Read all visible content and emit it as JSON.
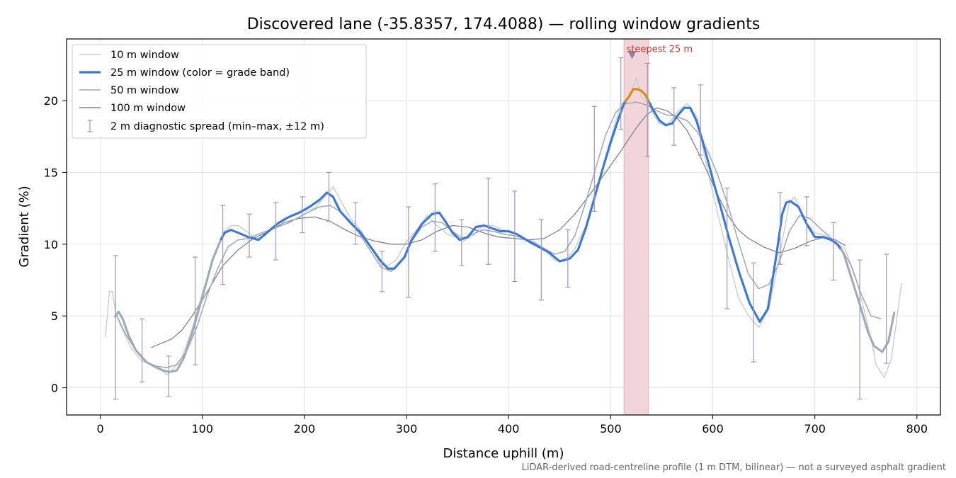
{
  "chart_data": {
    "type": "line",
    "title": "Discovered lane (-35.8357, 174.4088) — rolling window gradients",
    "xlabel": "Distance uphill (m)",
    "ylabel": "Gradient (%)",
    "xlim": [
      -33,
      823
    ],
    "ylim": [
      -1.9,
      24.3
    ],
    "x_ticks": [
      0,
      100,
      200,
      300,
      400,
      500,
      600,
      700,
      800
    ],
    "y_ticks": [
      0,
      5,
      10,
      15,
      20
    ],
    "grid": true,
    "legend_position": "top-left",
    "footnote": "LiDAR-derived road-centreline profile (1 m DTM, bilinear) — not a surveyed asphalt gradient",
    "annotation": {
      "text": "steepest 25 m",
      "x": 521,
      "y": 23.2
    },
    "highlight_band": {
      "x_start": 513,
      "x_end": 537
    },
    "colors": {
      "w10": "#c9ccd8",
      "w25_base": "#9caab8",
      "w25_band_blue": "#3a78d6",
      "w25_band_orange": "#d98a0c",
      "w50": "#9ea6b6",
      "w100": "#7c8496",
      "errorbar": "#9e97be",
      "band_fill": "#f2d5d8",
      "band_edge": "#e6b3b8",
      "marker": "#8a7fa8"
    },
    "series": [
      {
        "name": "10 m window",
        "x": [
          5,
          9,
          12,
          15,
          20,
          30,
          40,
          50,
          60,
          65,
          70,
          80,
          90,
          100,
          110,
          120,
          128,
          135,
          145,
          155,
          165,
          180,
          195,
          210,
          220,
          228,
          235,
          245,
          255,
          265,
          275,
          282,
          290,
          300,
          310,
          320,
          330,
          340,
          348,
          355,
          365,
          375,
          385,
          395,
          405,
          415,
          425,
          435,
          445,
          455,
          465,
          475,
          485,
          495,
          505,
          510,
          515,
          520,
          525,
          530,
          537,
          542,
          548,
          555,
          565,
          570,
          575,
          585,
          590,
          597,
          605,
          615,
          625,
          635,
          645,
          655,
          665,
          675,
          680,
          690,
          700,
          710,
          720,
          730,
          740,
          748,
          756,
          760,
          768,
          775,
          785
        ],
        "values": [
          3.5,
          6.7,
          6.7,
          5.2,
          4.3,
          2.8,
          1.9,
          1.6,
          1.2,
          0.9,
          1.2,
          2.1,
          4.1,
          6.6,
          8.8,
          10.8,
          11.3,
          11.3,
          10.8,
          10.3,
          11.0,
          11.8,
          12.2,
          12.5,
          13.3,
          14.0,
          13.1,
          11.8,
          11.0,
          9.8,
          8.6,
          8.5,
          8.9,
          10.2,
          11.0,
          12.0,
          11.3,
          10.7,
          10.5,
          10.2,
          10.6,
          11.3,
          11.3,
          11.0,
          10.8,
          10.4,
          10.2,
          9.6,
          8.9,
          8.8,
          9.7,
          11.2,
          13.6,
          16.1,
          18.6,
          19.7,
          20.1,
          20.6,
          21.6,
          20.3,
          19.8,
          19.0,
          18.4,
          18.2,
          19.2,
          19.5,
          19.8,
          18.8,
          16.8,
          14.5,
          12.1,
          9.1,
          6.3,
          5.0,
          4.2,
          5.5,
          9.0,
          12.9,
          13.3,
          11.7,
          10.8,
          10.6,
          10.2,
          9.6,
          7.7,
          5.5,
          3.1,
          1.6,
          0.7,
          2.0,
          7.3
        ]
      },
      {
        "name": "25 m window (color = grade band)",
        "x": [
          14,
          18,
          22,
          28,
          35,
          45,
          55,
          62,
          68,
          75,
          82,
          90,
          100,
          110,
          118,
          122,
          128,
          135,
          145,
          155,
          165,
          175,
          185,
          195,
          205,
          215,
          222,
          228,
          235,
          245,
          255,
          265,
          275,
          282,
          288,
          298,
          305,
          315,
          325,
          332,
          338,
          345,
          352,
          360,
          368,
          376,
          384,
          392,
          400,
          408,
          415,
          422,
          430,
          440,
          450,
          460,
          468,
          476,
          484,
          492,
          500,
          508,
          513,
          518,
          522,
          526,
          530,
          534,
          537,
          542,
          548,
          554,
          560,
          566,
          572,
          578,
          584,
          590,
          596,
          602,
          608,
          616,
          626,
          636,
          646,
          654,
          662,
          668,
          672,
          676,
          684,
          692,
          700,
          708,
          716,
          722,
          728,
          736,
          744,
          752,
          758,
          766,
          772,
          778
        ],
        "values": [
          4.9,
          5.3,
          4.8,
          3.6,
          2.6,
          1.8,
          1.4,
          1.2,
          1.1,
          1.2,
          2.1,
          3.8,
          6.3,
          8.9,
          10.3,
          10.8,
          11.0,
          10.8,
          10.5,
          10.3,
          10.9,
          11.5,
          11.9,
          12.2,
          12.6,
          13.1,
          13.6,
          13.3,
          12.3,
          11.5,
          10.8,
          9.8,
          8.8,
          8.3,
          8.3,
          9.1,
          10.3,
          11.4,
          12.1,
          12.2,
          11.6,
          10.8,
          10.3,
          10.5,
          11.2,
          11.3,
          11.1,
          10.9,
          10.9,
          10.7,
          10.4,
          10.1,
          9.8,
          9.4,
          8.8,
          9.0,
          9.6,
          11.2,
          13.2,
          15.2,
          17.1,
          18.8,
          19.8,
          20.3,
          20.8,
          20.8,
          20.7,
          20.4,
          20.0,
          19.3,
          18.6,
          18.3,
          18.4,
          19.0,
          19.5,
          19.5,
          18.6,
          17.2,
          15.6,
          14.0,
          12.5,
          10.4,
          8.0,
          5.9,
          4.6,
          5.5,
          9.1,
          12.1,
          12.9,
          13.0,
          12.6,
          11.4,
          10.5,
          10.5,
          10.3,
          10.0,
          9.4,
          7.6,
          5.8,
          3.9,
          2.9,
          2.5,
          3.2,
          5.3
        ],
        "colored_segment_range": [
          118,
          725
        ],
        "orange_segment_range": [
          514,
          538
        ]
      },
      {
        "name": "50 m window",
        "x": [
          15,
          25,
          35,
          45,
          55,
          65,
          75,
          85,
          95,
          105,
          115,
          125,
          135,
          145,
          155,
          170,
          185,
          200,
          215,
          225,
          235,
          245,
          255,
          265,
          275,
          285,
          295,
          305,
          315,
          325,
          335,
          345,
          355,
          365,
          375,
          385,
          395,
          405,
          415,
          425,
          435,
          445,
          455,
          465,
          475,
          485,
          495,
          505,
          515,
          525,
          535,
          545,
          555,
          565,
          575,
          585,
          595,
          605,
          615,
          625,
          635,
          645,
          655,
          665,
          675,
          685,
          695,
          705,
          715,
          725,
          735,
          745,
          755,
          765
        ],
        "values": [
          5.2,
          3.7,
          2.6,
          1.8,
          1.5,
          1.4,
          1.6,
          2.6,
          4.3,
          6.5,
          8.3,
          9.8,
          10.3,
          10.4,
          10.7,
          11.1,
          11.5,
          12.1,
          12.6,
          12.7,
          12.3,
          11.6,
          10.6,
          9.5,
          8.4,
          8.1,
          8.8,
          10.2,
          11.2,
          11.6,
          11.5,
          10.9,
          10.4,
          10.7,
          11.0,
          10.9,
          10.7,
          10.6,
          10.4,
          10.1,
          9.7,
          9.3,
          9.5,
          10.6,
          12.8,
          15.2,
          17.6,
          19.2,
          19.8,
          19.9,
          19.7,
          19.3,
          19.0,
          18.9,
          18.6,
          17.8,
          16.5,
          14.8,
          12.7,
          10.2,
          7.9,
          6.9,
          7.2,
          8.7,
          10.9,
          12.0,
          11.8,
          11.1,
          10.5,
          9.8,
          8.6,
          6.6,
          5.0,
          4.8
        ]
      },
      {
        "name": "100 m window",
        "x": [
          50,
          60,
          70,
          80,
          90,
          100,
          110,
          120,
          135,
          150,
          165,
          180,
          195,
          210,
          225,
          240,
          255,
          270,
          285,
          300,
          315,
          330,
          345,
          360,
          375,
          390,
          405,
          420,
          435,
          450,
          465,
          480,
          495,
          510,
          525,
          535,
          545,
          555,
          565,
          575,
          585,
          595,
          605,
          615,
          625,
          635,
          650,
          665,
          680,
          695,
          710,
          720,
          730
        ],
        "values": [
          2.8,
          3.1,
          3.4,
          4.0,
          5.0,
          6.1,
          7.3,
          8.5,
          9.6,
          10.4,
          10.9,
          11.5,
          11.8,
          11.9,
          11.6,
          11.0,
          10.5,
          10.2,
          10.0,
          10.0,
          10.3,
          10.9,
          11.3,
          11.2,
          10.8,
          10.5,
          10.4,
          10.3,
          10.4,
          11.0,
          12.1,
          13.5,
          15.0,
          16.5,
          18.1,
          19.0,
          19.5,
          19.3,
          18.8,
          17.9,
          16.5,
          15.0,
          13.4,
          12.0,
          11.0,
          10.4,
          9.8,
          9.4,
          9.7,
          10.2,
          10.5,
          10.3,
          9.9
        ]
      }
    ],
    "error_bars": {
      "name": "2 m diagnostic spread (min–max, ±12 m)",
      "x": [
        15,
        41,
        67,
        93,
        120,
        146,
        172,
        198,
        224,
        250,
        276,
        302,
        328,
        354,
        380,
        406,
        432,
        458,
        484,
        510,
        536,
        562,
        588,
        614,
        640,
        666,
        692,
        718,
        744,
        770
      ],
      "low": [
        -0.8,
        0.4,
        -0.6,
        1.6,
        7.2,
        9.1,
        8.9,
        10.8,
        11.6,
        10.0,
        6.7,
        6.3,
        9.5,
        8.5,
        8.6,
        7.4,
        6.1,
        7.0,
        12.3,
        18.0,
        16.1,
        16.9,
        16.2,
        5.5,
        1.8,
        8.6,
        9.9,
        7.5,
        -0.8,
        1.7
      ],
      "high": [
        9.2,
        4.8,
        2.2,
        9.1,
        12.7,
        12.1,
        12.9,
        13.3,
        15.0,
        12.9,
        9.5,
        12.6,
        14.2,
        11.7,
        14.6,
        13.7,
        11.7,
        11.0,
        19.6,
        23.0,
        22.6,
        20.9,
        21.1,
        13.9,
        8.7,
        13.6,
        13.3,
        11.5,
        8.9,
        9.3
      ]
    }
  }
}
